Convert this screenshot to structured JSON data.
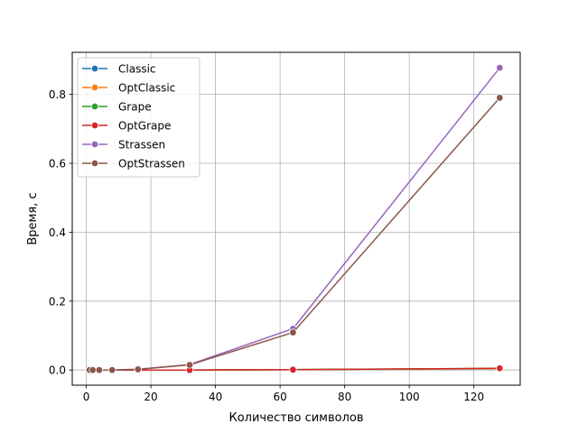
{
  "chart_data": {
    "type": "line",
    "title": "",
    "xlabel": "Количество символов",
    "ylabel": "Время, с",
    "xlim": [
      -4.35,
      134.35
    ],
    "ylim": [
      -0.044,
      0.922
    ],
    "x_ticks": [
      0,
      20,
      40,
      60,
      80,
      100,
      120
    ],
    "y_ticks": [
      0.0,
      0.2,
      0.4,
      0.6,
      0.8
    ],
    "y_tick_labels": [
      "0.0",
      "0.2",
      "0.4",
      "0.6",
      "0.8"
    ],
    "grid": true,
    "legend_position": "top-left",
    "x": [
      1,
      2,
      4,
      8,
      16,
      32,
      64,
      128
    ],
    "series": [
      {
        "name": "Classic",
        "color": "#1f77b4",
        "values": [
          0.0,
          0.0,
          0.0,
          0.0,
          0.0,
          0.0,
          0.001,
          0.004
        ]
      },
      {
        "name": "OptClassic",
        "color": "#ff7f0e",
        "values": [
          0.0,
          0.0,
          0.0,
          0.0,
          0.0,
          0.0,
          0.001,
          0.004
        ]
      },
      {
        "name": "Grape",
        "color": "#2ca02c",
        "values": [
          0.0,
          0.0,
          0.0,
          0.0,
          0.0,
          0.0,
          0.001,
          0.005
        ]
      },
      {
        "name": "OptGrape",
        "color": "#d62728",
        "values": [
          0.0,
          0.0,
          0.0,
          0.0,
          0.0,
          0.0,
          0.001,
          0.005
        ]
      },
      {
        "name": "Strassen",
        "color": "#9467bd",
        "values": [
          0.0,
          0.0,
          0.0,
          0.0,
          0.002,
          0.016,
          0.12,
          0.877
        ]
      },
      {
        "name": "OptStrassen",
        "color": "#8c564b",
        "values": [
          0.0,
          0.0,
          0.0,
          0.0,
          0.002,
          0.015,
          0.109,
          0.79
        ]
      }
    ]
  }
}
